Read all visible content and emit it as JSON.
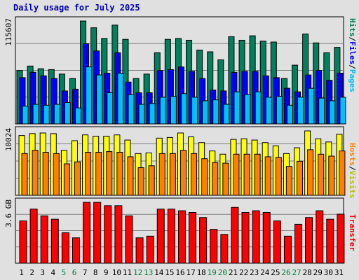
{
  "title": "Daily usage for July 2025",
  "colors": {
    "hits": "#00805c",
    "files": "#0000ff",
    "pages": "#00c0ff",
    "visits": "#ffff00",
    "hosts": "#ff8000",
    "kbytes": "#ff0000",
    "grid": "#808080",
    "plot_bg": "#e0e0e0",
    "weekday_label": "#000000",
    "weekend_label": "#008040"
  },
  "chart_data": [
    {
      "type": "bar",
      "panel": "hits-files-pages",
      "categories": [
        "1",
        "2",
        "3",
        "4",
        "5",
        "6",
        "7",
        "8",
        "9",
        "10",
        "11",
        "12",
        "13",
        "14",
        "15",
        "16",
        "17",
        "18",
        "19",
        "20",
        "21",
        "22",
        "23",
        "24",
        "25",
        "26",
        "27",
        "28",
        "29",
        "30",
        "31"
      ],
      "weekend_days": [
        "5",
        "6",
        "12",
        "13",
        "19",
        "20",
        "26",
        "27"
      ],
      "ymax_label": "115607",
      "ylim": [
        0,
        115607
      ],
      "grid": true,
      "series": [
        {
          "name": "Hits",
          "values": [
            60000,
            65000,
            62000,
            61000,
            56000,
            51000,
            115607,
            108000,
            96000,
            111000,
            95000,
            51000,
            56000,
            80000,
            95000,
            96000,
            94000,
            83000,
            81000,
            72000,
            98000,
            94000,
            99000,
            93000,
            92000,
            51000,
            66000,
            101000,
            91000,
            80000,
            86000
          ]
        },
        {
          "name": "Files",
          "values": [
            52000,
            58000,
            54000,
            51000,
            37000,
            39000,
            90000,
            82000,
            57000,
            80000,
            47000,
            35000,
            35000,
            60000,
            61000,
            64000,
            59000,
            51000,
            38000,
            37000,
            58000,
            59000,
            59000,
            54000,
            52000,
            40000,
            36000,
            55000,
            60000,
            49000,
            57000
          ]
        },
        {
          "name": "Pages",
          "values": [
            20000,
            22000,
            21000,
            22000,
            24000,
            18000,
            64000,
            55000,
            35000,
            57000,
            33000,
            22000,
            23000,
            30000,
            31000,
            34000,
            30000,
            26000,
            27000,
            22000,
            36000,
            33000,
            36000,
            30000,
            31000,
            21000,
            30000,
            40000,
            29000,
            26000,
            30000
          ]
        }
      ],
      "legend": "right-vertical"
    },
    {
      "type": "bar",
      "panel": "visits-hosts",
      "categories": [
        "1",
        "2",
        "3",
        "4",
        "5",
        "6",
        "7",
        "8",
        "9",
        "10",
        "11",
        "12",
        "13",
        "14",
        "15",
        "16",
        "17",
        "18",
        "19",
        "20",
        "21",
        "22",
        "23",
        "24",
        "25",
        "26",
        "27",
        "28",
        "29",
        "30",
        "31"
      ],
      "ymax_label": "10024",
      "ylim": [
        0,
        10024
      ],
      "grid": true,
      "series": [
        {
          "name": "Visits",
          "values": [
            9300,
            9600,
            9700,
            9600,
            7000,
            8500,
            9400,
            9200,
            9200,
            9400,
            8600,
            6500,
            6600,
            8900,
            9000,
            9700,
            9100,
            8200,
            6900,
            6400,
            8700,
            8800,
            8600,
            8200,
            7700,
            6500,
            7400,
            10024,
            8800,
            8300,
            9500
          ]
        },
        {
          "name": "Hosts",
          "values": [
            6500,
            7000,
            6700,
            6500,
            4900,
            5200,
            6700,
            6700,
            6800,
            6700,
            6000,
            4300,
            4600,
            6500,
            6500,
            7000,
            6500,
            5700,
            5100,
            5000,
            6400,
            6400,
            6400,
            6000,
            5900,
            4500,
            5300,
            7100,
            6400,
            6100,
            6900
          ]
        }
      ],
      "legend": "right-vertical"
    },
    {
      "type": "bar",
      "panel": "transfer",
      "categories": [
        "1",
        "2",
        "3",
        "4",
        "5",
        "6",
        "7",
        "8",
        "9",
        "10",
        "11",
        "12",
        "13",
        "14",
        "15",
        "16",
        "17",
        "18",
        "19",
        "20",
        "21",
        "22",
        "23",
        "24",
        "25",
        "26",
        "27",
        "28",
        "29",
        "30",
        "31"
      ],
      "ymax_label": "3.6 GB",
      "ylim": [
        0,
        3.6
      ],
      "grid": true,
      "series": [
        {
          "name": "Transfer",
          "values": [
            2.5,
            3.2,
            2.8,
            2.6,
            1.8,
            1.5,
            3.6,
            3.6,
            3.4,
            3.4,
            2.8,
            1.5,
            1.6,
            3.2,
            3.2,
            3.1,
            3.0,
            2.7,
            2.0,
            1.7,
            3.3,
            3.0,
            3.1,
            3.0,
            2.5,
            1.6,
            2.3,
            2.7,
            3.1,
            2.6,
            2.9
          ]
        }
      ],
      "legend": "right-vertical"
    }
  ],
  "legend_labels": {
    "hits": "Hits",
    "files": "Files",
    "pages": "Pages",
    "visits": "Visits",
    "hosts": "Hosts",
    "transfer": "Transfer",
    "sep": "/"
  }
}
